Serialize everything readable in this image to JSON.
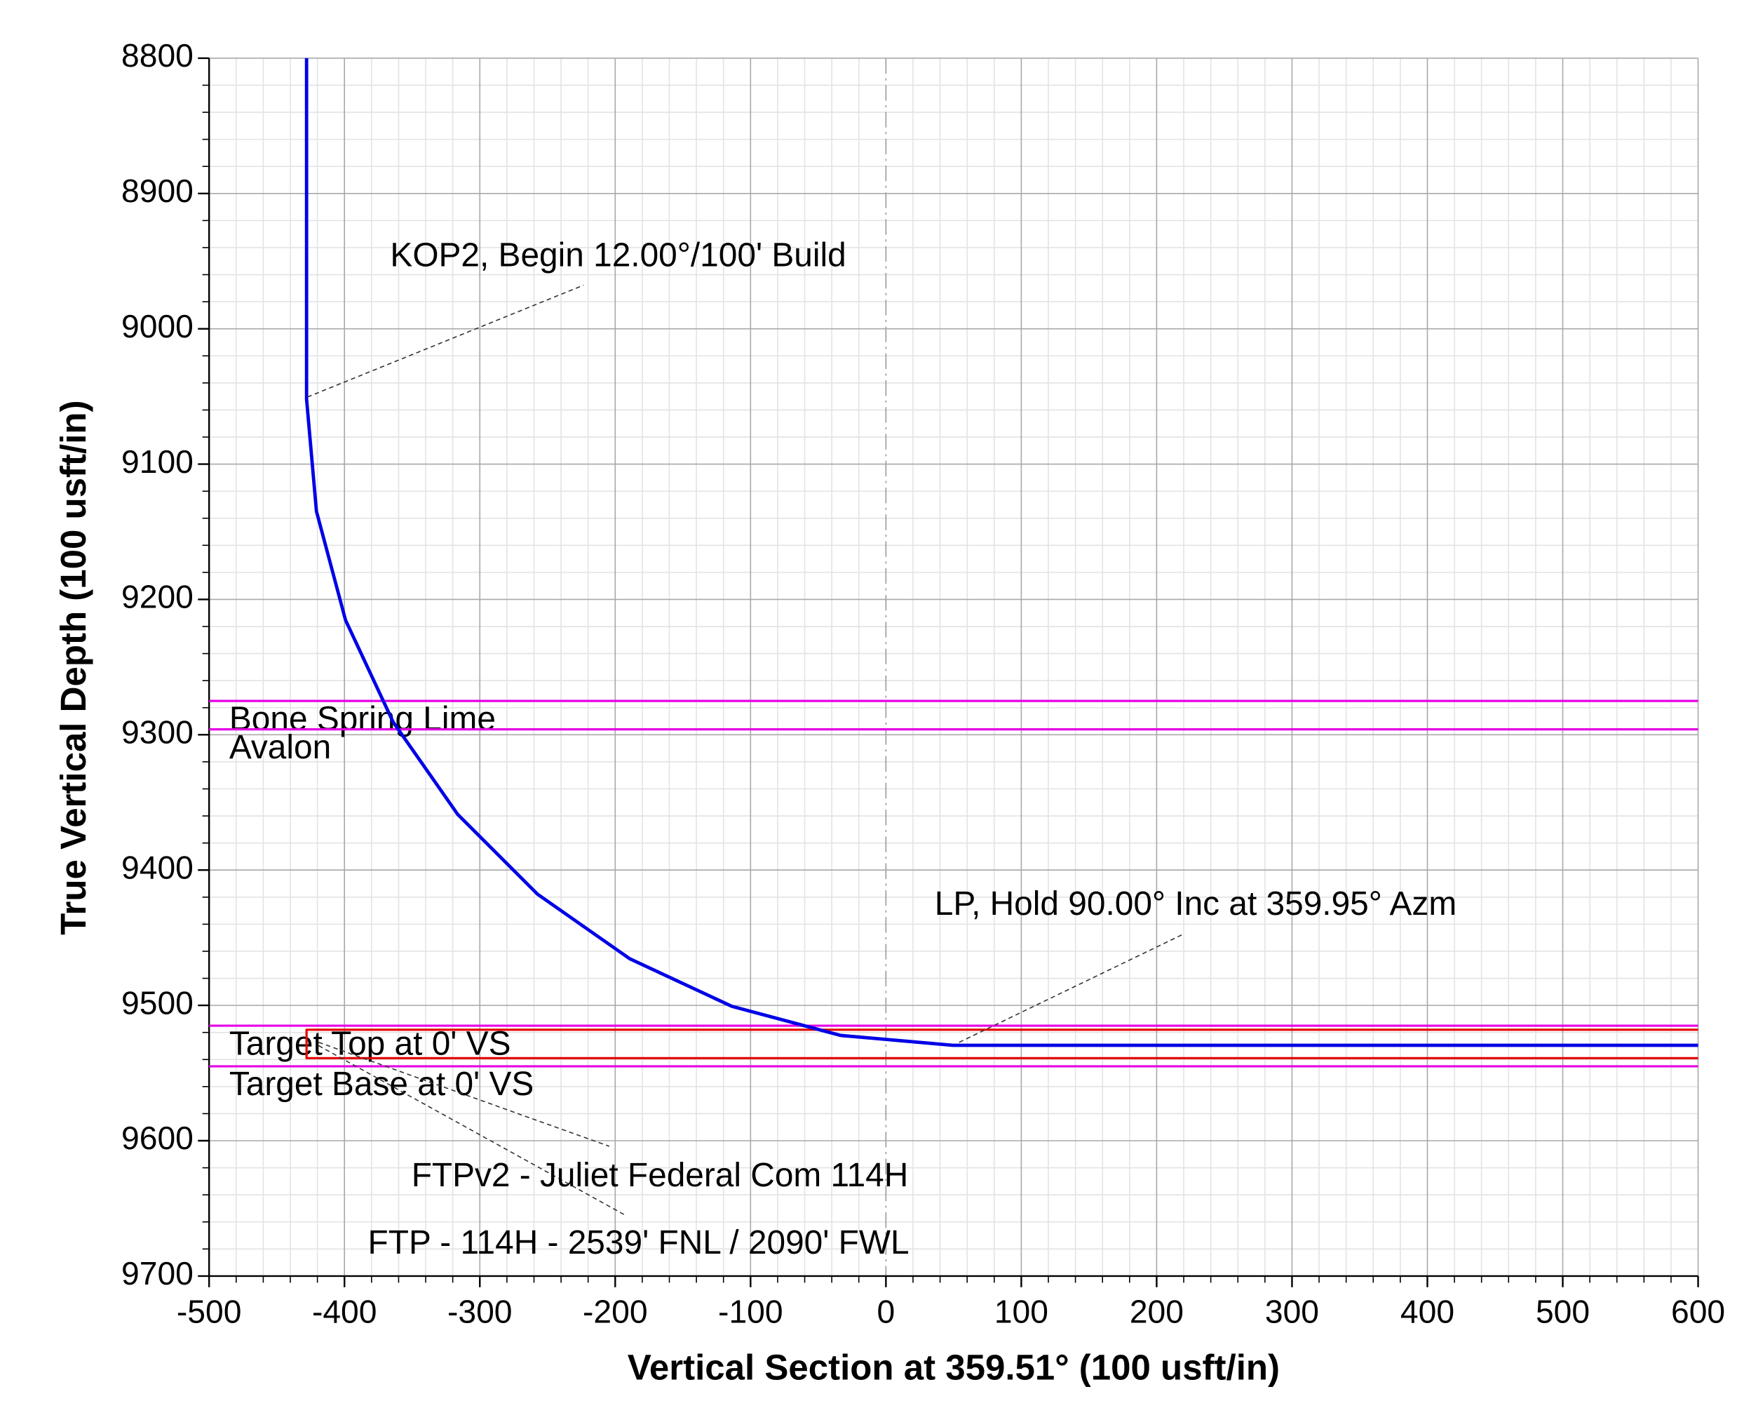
{
  "chart_data": {
    "type": "line",
    "x_label": "Vertical Section at 359.51° (100 usft/in)",
    "y_label": "True Vertical Depth (100 usft/in)",
    "xlim": [
      -500,
      600
    ],
    "ylim": [
      8800,
      9700
    ],
    "xticks": [
      -500,
      -400,
      -300,
      -200,
      -100,
      0,
      100,
      200,
      300,
      400,
      500,
      600
    ],
    "yticks": [
      8800,
      8900,
      9000,
      9100,
      9200,
      9300,
      9400,
      9500,
      9600,
      9700
    ],
    "grid": true,
    "y_inverted": true,
    "series": [
      {
        "color": "#0000e6",
        "x": [
          -428,
          -428,
          -420.7,
          -399.2,
          -364.0,
          -316.3,
          -257.4,
          -189.3,
          -113.8,
          -33.4,
          49.5,
          600
        ],
        "y": [
          8800,
          9052,
          9134.9,
          9215.3,
          9290.7,
          9358.9,
          9417.8,
          9465.5,
          9500.7,
          9522.2,
          9529.5,
          9529.5
        ]
      },
      {
        "color": "#e60000",
        "x": [
          600,
          -428,
          -428,
          600
        ],
        "y": [
          9518,
          9518,
          9539,
          9539
        ]
      }
    ],
    "formations": [
      {
        "label": "Bone Spring Lime",
        "tvd": 9275,
        "color": "#e600e6"
      },
      {
        "label": "Avalon",
        "tvd": 9296,
        "color": "#e600e6"
      },
      {
        "label": "Target Top at 0' VS",
        "tvd": 9515,
        "color": "#e600e6"
      },
      {
        "label": "Target Base at 0' VS",
        "tvd": 9545,
        "color": "#e600e6"
      }
    ],
    "annotations": [
      "KOP2, Begin 12.00°/100' Build",
      "LP, Hold 90.00° Inc at 359.95° Azm",
      "FTPv2 - Juliet Federal Com 114H",
      "FTP - 114H - 2539' FNL / 2090' FWL"
    ]
  }
}
